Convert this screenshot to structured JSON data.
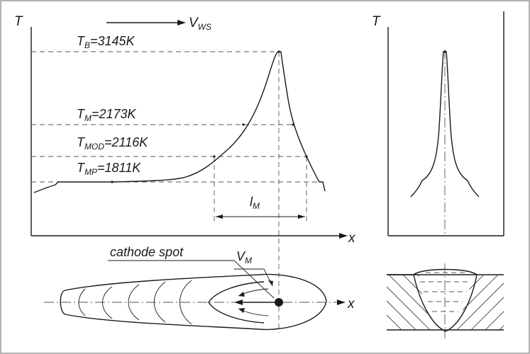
{
  "labels": {
    "T_axis_main": "T",
    "T_axis_right": "T",
    "x_axis_main": "x",
    "x_axis_bottom": "x",
    "V_ws": "V",
    "V_ws_sub": "WS",
    "T_B": "T",
    "T_B_sub": "B",
    "T_B_val": "=3145K",
    "T_M": "T",
    "T_M_sub": "M",
    "T_M_val": "=2173K",
    "T_MOD": "T",
    "T_MOD_sub": "MOD",
    "T_MOD_val": "=2116K",
    "T_MP": "T",
    "T_MP_sub": "MP",
    "T_MP_val": "=1811K",
    "l_M": "l",
    "l_M_sub": "M",
    "cathode_spot": "cathode spot",
    "V_M": "V",
    "V_M_sub": "M"
  },
  "colors": {
    "ink": "#1a1a1a",
    "dash": "#555555",
    "frame": "#999999",
    "background": "#ffffff"
  }
}
